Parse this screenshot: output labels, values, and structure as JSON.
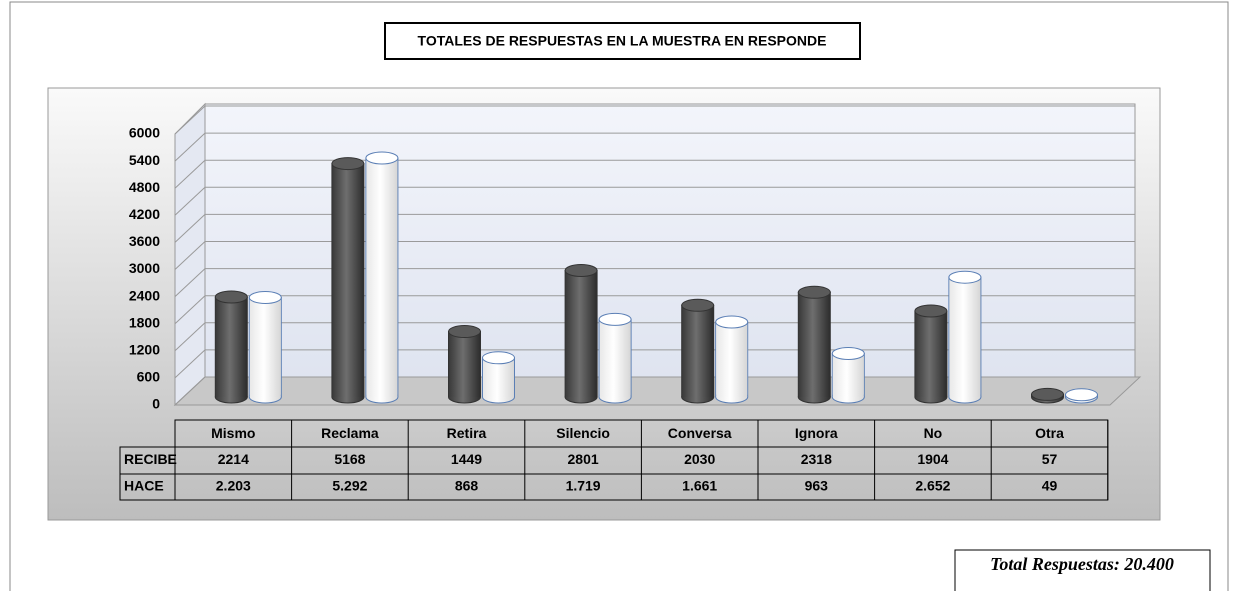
{
  "chart_data": {
    "type": "bar",
    "title": "TOTALES DE RESPUESTAS EN LA MUESTRA EN RESPONDE",
    "categories": [
      "Mismo",
      "Reclama",
      "Retira",
      "Silencio",
      "Conversa",
      "Ignora",
      "No",
      "Otra"
    ],
    "series": [
      {
        "name": "RECIBE",
        "color": "#5a5a5a",
        "values": [
          2214,
          5168,
          1449,
          2801,
          2030,
          2318,
          1904,
          57
        ]
      },
      {
        "name": "HACE",
        "color": "#ffffff",
        "values": [
          2203,
          5292,
          868,
          1719,
          1661,
          963,
          2652,
          49
        ],
        "value_labels": [
          "2.203",
          "5.292",
          "868",
          "1.719",
          "1.661",
          "963",
          "2.652",
          "49"
        ]
      }
    ],
    "ylim": [
      0,
      6000
    ],
    "yticks": [
      0,
      600,
      1200,
      1800,
      2400,
      3000,
      3600,
      4200,
      4800,
      5400,
      6000
    ],
    "grid": true,
    "annotation": "Total Respuestas: 20.400"
  }
}
